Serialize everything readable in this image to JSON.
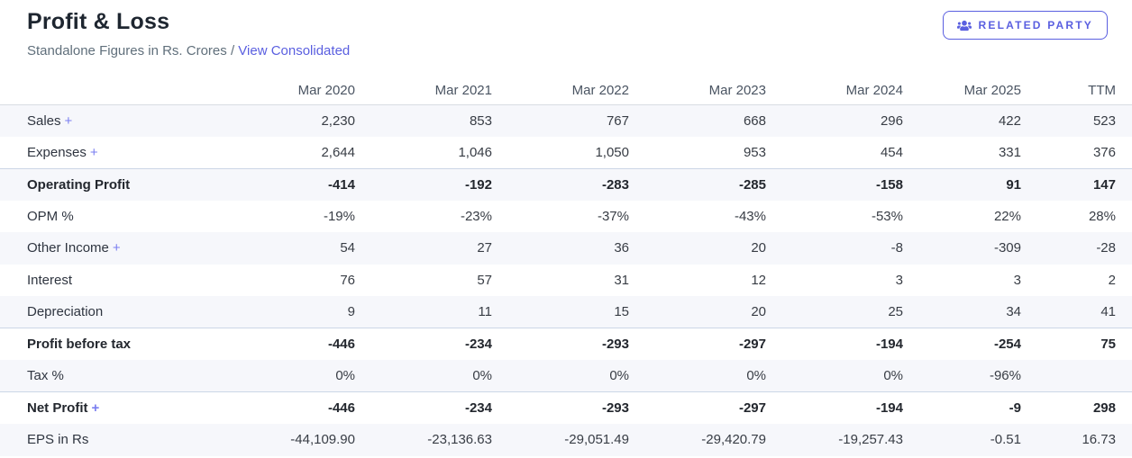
{
  "header": {
    "title": "Profit & Loss",
    "subtitle_prefix": "Standalone Figures in Rs. Crores /",
    "view_link": "View Consolidated",
    "related_party_label": "RELATED PARTY"
  },
  "expand_symbol": "+",
  "colors": {
    "accent": "#5a5fe0",
    "plus": "#7a7ef0",
    "stripe": "#f6f7fb",
    "separator_border": "#ccd6e6",
    "header_border": "#d8dce3"
  },
  "chart_data": {
    "type": "table",
    "title": "Profit & Loss",
    "columns": [
      "Mar 2020",
      "Mar 2021",
      "Mar 2022",
      "Mar 2023",
      "Mar 2024",
      "Mar 2025",
      "TTM"
    ],
    "rows": [
      {
        "label": "Sales",
        "expandable": true,
        "bold": false,
        "separator": false,
        "values": [
          "2,230",
          "853",
          "767",
          "668",
          "296",
          "422",
          "523"
        ]
      },
      {
        "label": "Expenses",
        "expandable": true,
        "bold": false,
        "separator": false,
        "values": [
          "2,644",
          "1,046",
          "1,050",
          "953",
          "454",
          "331",
          "376"
        ]
      },
      {
        "label": "Operating Profit",
        "expandable": false,
        "bold": true,
        "separator": true,
        "values": [
          "-414",
          "-192",
          "-283",
          "-285",
          "-158",
          "91",
          "147"
        ]
      },
      {
        "label": "OPM %",
        "expandable": false,
        "bold": false,
        "separator": false,
        "values": [
          "-19%",
          "-23%",
          "-37%",
          "-43%",
          "-53%",
          "22%",
          "28%"
        ]
      },
      {
        "label": "Other Income",
        "expandable": true,
        "bold": false,
        "separator": false,
        "values": [
          "54",
          "27",
          "36",
          "20",
          "-8",
          "-309",
          "-28"
        ]
      },
      {
        "label": "Interest",
        "expandable": false,
        "bold": false,
        "separator": false,
        "values": [
          "76",
          "57",
          "31",
          "12",
          "3",
          "3",
          "2"
        ]
      },
      {
        "label": "Depreciation",
        "expandable": false,
        "bold": false,
        "separator": false,
        "values": [
          "9",
          "11",
          "15",
          "20",
          "25",
          "34",
          "41"
        ]
      },
      {
        "label": "Profit before tax",
        "expandable": false,
        "bold": true,
        "separator": true,
        "values": [
          "-446",
          "-234",
          "-293",
          "-297",
          "-194",
          "-254",
          "75"
        ]
      },
      {
        "label": "Tax %",
        "expandable": false,
        "bold": false,
        "separator": false,
        "values": [
          "0%",
          "0%",
          "0%",
          "0%",
          "0%",
          "-96%",
          ""
        ]
      },
      {
        "label": "Net Profit",
        "expandable": true,
        "bold": true,
        "separator": true,
        "values": [
          "-446",
          "-234",
          "-293",
          "-297",
          "-194",
          "-9",
          "298"
        ]
      },
      {
        "label": "EPS in Rs",
        "expandable": false,
        "bold": false,
        "separator": false,
        "values": [
          "-44,109.90",
          "-23,136.63",
          "-29,051.49",
          "-29,420.79",
          "-19,257.43",
          "-0.51",
          "16.73"
        ]
      }
    ]
  }
}
